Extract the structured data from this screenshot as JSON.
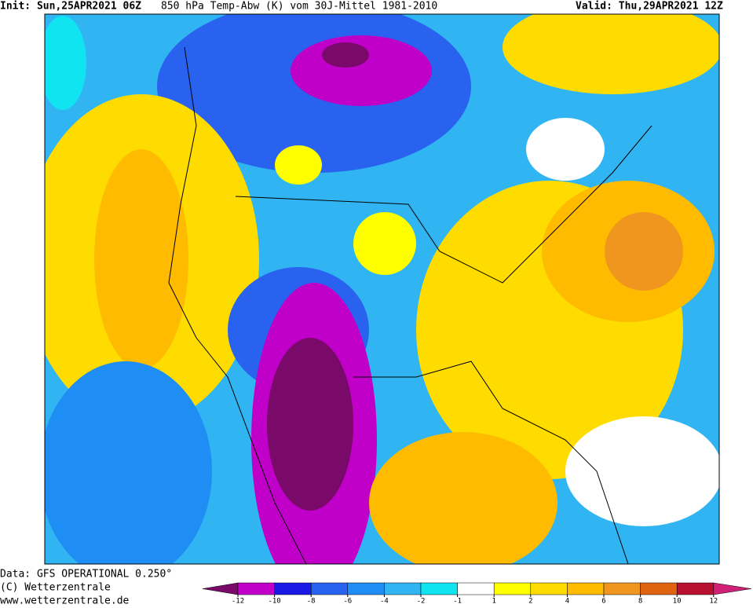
{
  "header": {
    "init": "Init: Sun,25APR2021 06Z",
    "title": "850 hPa Temp-Abw (K) vom 30J-Mittel 1981-2010",
    "valid": "Valid: Thu,29APR2021 12Z"
  },
  "footer": {
    "source": "Data: GFS OPERATIONAL 0.250°",
    "copyright": "(C) Wetterzentrale",
    "url": "www.wetterzentrale.de"
  },
  "colorbar": {
    "ticks": [
      -12,
      -10,
      -8,
      -6,
      -4,
      -2,
      -1,
      1,
      2,
      4,
      6,
      8,
      10,
      12
    ],
    "colors": [
      "#7a0a6a",
      "#c000c8",
      "#1a1ae6",
      "#2a62f0",
      "#1e8ef4",
      "#30b4f2",
      "#10e4f0",
      "#ffffff",
      "#ffff00",
      "#ffdc00",
      "#ffbb00",
      "#f0961e",
      "#e06410",
      "#b8102e",
      "#d02078"
    ]
  }
}
